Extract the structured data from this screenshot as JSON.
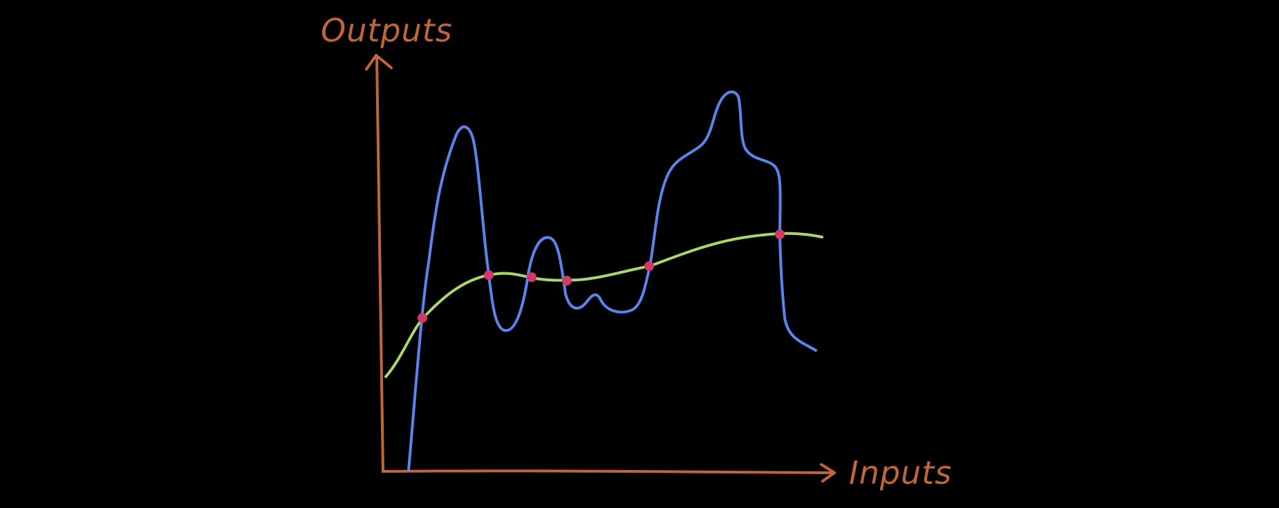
{
  "labels": {
    "y_axis": "Outputs",
    "x_axis": "Inputs"
  },
  "colors": {
    "background": "#000000",
    "axes": "#c0673a",
    "labels": "#c0673a",
    "wiggly_curve": "#5b85ee",
    "smooth_curve": "#a7d86e",
    "intersection_points": "#d2386a"
  }
}
